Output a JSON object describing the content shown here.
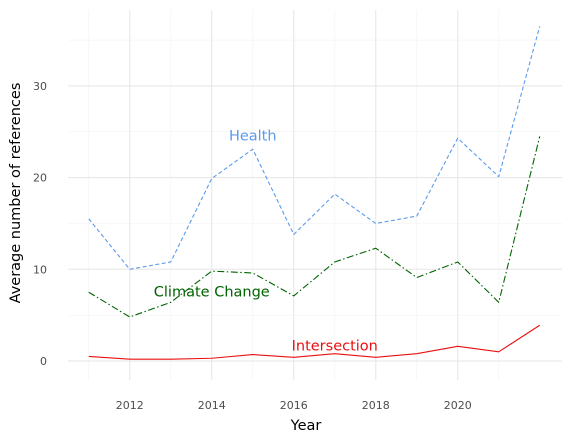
{
  "chart_data": {
    "type": "line",
    "title": "",
    "xlabel": "Year",
    "ylabel": "Average number of references",
    "xlim": [
      2010.5,
      22.5
    ],
    "x_ticks": [
      2012,
      2014,
      2016,
      2018,
      2020
    ],
    "x_tick_labels": [
      "2012",
      "2014",
      "2016",
      "2018",
      "2020"
    ],
    "ylim": [
      -2.5,
      38.5
    ],
    "y_ticks": [
      0,
      10,
      20,
      30
    ],
    "y_tick_labels": [
      "0",
      "10",
      "20",
      "30"
    ],
    "grid": true,
    "legend": "none",
    "x": [
      2011,
      2012,
      2013,
      2014,
      2015,
      2016,
      2017,
      2018,
      2019,
      2020,
      2021,
      2022
    ],
    "series": [
      {
        "name": "Health",
        "color": "#5b9bea",
        "style": "dashed",
        "values": [
          15.5,
          10.0,
          10.8,
          19.9,
          23.1,
          13.8,
          18.2,
          15.0,
          15.8,
          24.3,
          20.1,
          36.5
        ]
      },
      {
        "name": "Climate Change",
        "color": "#006400",
        "style": "dashdot",
        "values": [
          7.5,
          4.8,
          6.4,
          9.8,
          9.6,
          7.1,
          10.8,
          12.3,
          9.1,
          10.8,
          6.4,
          24.5
        ]
      },
      {
        "name": "Intersection",
        "color": "#e81010",
        "style": "solid",
        "values": [
          0.5,
          0.2,
          0.2,
          0.3,
          0.7,
          0.4,
          0.8,
          0.4,
          0.8,
          1.6,
          1.0,
          3.9
        ]
      }
    ],
    "annotations": [
      {
        "series": "Health",
        "text": "Health",
        "x": 2015.0,
        "y": 24.6,
        "color": "#5b9bea"
      },
      {
        "series": "Climate Change",
        "text": "Climate Change",
        "x": 2014.0,
        "y": 7.6,
        "color": "#006400"
      },
      {
        "series": "Intersection",
        "text": "Intersection",
        "x": 2017.0,
        "y": 1.7,
        "color": "#e81010"
      }
    ],
    "colors": {
      "background": "#ffffff",
      "major_grid": "#e5e5e5",
      "minor_grid": "#f3f3f3"
    }
  }
}
